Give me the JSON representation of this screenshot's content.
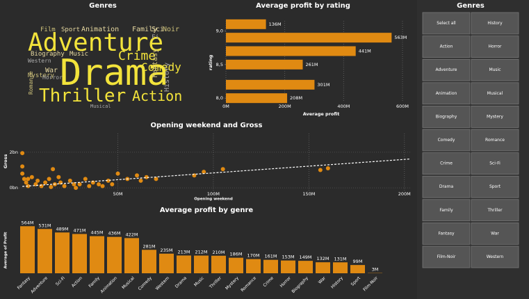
{
  "chart_data": [
    {
      "type": "hbar",
      "title": "Average profit by rating",
      "xlabel": "Average profit",
      "ylabel": "rating",
      "y": [
        9.1,
        8.9,
        8.7,
        8.5,
        8.2,
        8.0
      ],
      "values": [
        136,
        563,
        441,
        261,
        301,
        208
      ],
      "value_labels": [
        "136M",
        "563M",
        "441M",
        "261M",
        "301M",
        "208M"
      ],
      "xlim": [
        0,
        600
      ],
      "xticks": [
        {
          "value": 0,
          "label": "0M"
        },
        {
          "value": 200,
          "label": "200M"
        },
        {
          "value": 400,
          "label": "400M"
        },
        {
          "value": 600,
          "label": "600M"
        }
      ],
      "ylim": [
        7.95,
        9.15
      ],
      "yticks": [
        {
          "value": 9,
          "label": "9,0"
        },
        {
          "value": 8.5,
          "label": "8,5"
        },
        {
          "value": 8,
          "label": "8,0"
        }
      ],
      "color": "#e08a12",
      "grid": true
    },
    {
      "type": "scatter",
      "title": "Opening weekend and Gross",
      "xlabel": "Opening weekend",
      "ylabel": "Gross",
      "x": [
        0,
        0,
        0,
        1,
        2,
        3,
        3,
        5,
        7,
        8,
        10,
        12,
        14,
        15,
        16,
        17,
        19,
        20,
        22,
        25,
        27,
        28,
        30,
        33,
        35,
        37,
        40,
        42,
        45,
        47,
        50,
        55,
        60,
        62,
        65,
        70,
        90,
        95,
        105,
        156,
        160
      ],
      "y": [
        1.95,
        1.2,
        0.8,
        0.5,
        0.3,
        0.1,
        0.5,
        0.6,
        0.2,
        0.4,
        0.1,
        0.3,
        0.5,
        0.05,
        1.05,
        0.2,
        0.6,
        0.3,
        0.1,
        0.4,
        0.2,
        0.0,
        0.2,
        0.5,
        0.1,
        0.3,
        0.2,
        0.1,
        0.4,
        0.2,
        0.8,
        0.5,
        0.7,
        0.4,
        0.6,
        0.5,
        0.7,
        0.9,
        1.05,
        1.0,
        1.1
      ],
      "trendline": {
        "x": [
          0,
          203
        ],
        "y": [
          0.08,
          1.62
        ]
      },
      "xlim": [
        -1.5,
        203
      ],
      "xticks": [
        {
          "value": 50,
          "label": "50M"
        },
        {
          "value": 100,
          "label": "100M"
        },
        {
          "value": 150,
          "label": "150M"
        },
        {
          "value": 200,
          "label": "200M"
        }
      ],
      "ylim": [
        -0.15,
        3.05
      ],
      "yticks": [
        {
          "value": 0,
          "label": "0bn"
        },
        {
          "value": 2,
          "label": "2bn"
        }
      ],
      "color": "#e08a12",
      "grid": true
    },
    {
      "type": "bar",
      "title": "Average profit by genre",
      "ylabel": "Average of Profit",
      "categories": [
        "Fantasy",
        "Adventure",
        "Sci-Fi",
        "Action",
        "Family",
        "Animation",
        "Musical",
        "Comedy",
        "Western",
        "Drama",
        "Music",
        "Thriller",
        "Mystery",
        "Romance",
        "Crime",
        "Horror",
        "Biography",
        "War",
        "History",
        "Sport",
        "Film-Noir"
      ],
      "values": [
        564,
        531,
        489,
        471,
        445,
        436,
        422,
        281,
        235,
        213,
        212,
        210,
        186,
        170,
        161,
        153,
        149,
        132,
        131,
        99,
        3
      ],
      "value_labels": [
        "564M",
        "531M",
        "489M",
        "471M",
        "445M",
        "436M",
        "422M",
        "281M",
        "235M",
        "213M",
        "212M",
        "210M",
        "186M",
        "170M",
        "161M",
        "153M",
        "149M",
        "132M",
        "131M",
        "99M",
        "3M"
      ],
      "ylim": [
        0,
        600
      ],
      "color": "#e08a12"
    }
  ],
  "wordcloud": {
    "title": "Genres",
    "words": [
      "Adventure",
      "Drama",
      "Thriller",
      "Action",
      "Crime",
      "Comedy",
      "Biography",
      "Music",
      "Western",
      "Romance",
      "Mystery",
      "War",
      "Horror",
      "Fantasy",
      "History",
      "Film",
      "Sport",
      "Animation",
      "Family",
      "Sci",
      "Noir",
      "Fi",
      "Musical"
    ]
  },
  "slicer": {
    "title": "Genres",
    "items": [
      "Select all",
      "History",
      "Action",
      "Horror",
      "Adventure",
      "Music",
      "Animation",
      "Musical",
      "Biography",
      "Mystery",
      "Comedy",
      "Romance",
      "Crime",
      "Sci-Fi",
      "Drama",
      "Sport",
      "Family",
      "Thriller",
      "Fantasy",
      "War",
      "Film-Noir",
      "Western"
    ]
  }
}
